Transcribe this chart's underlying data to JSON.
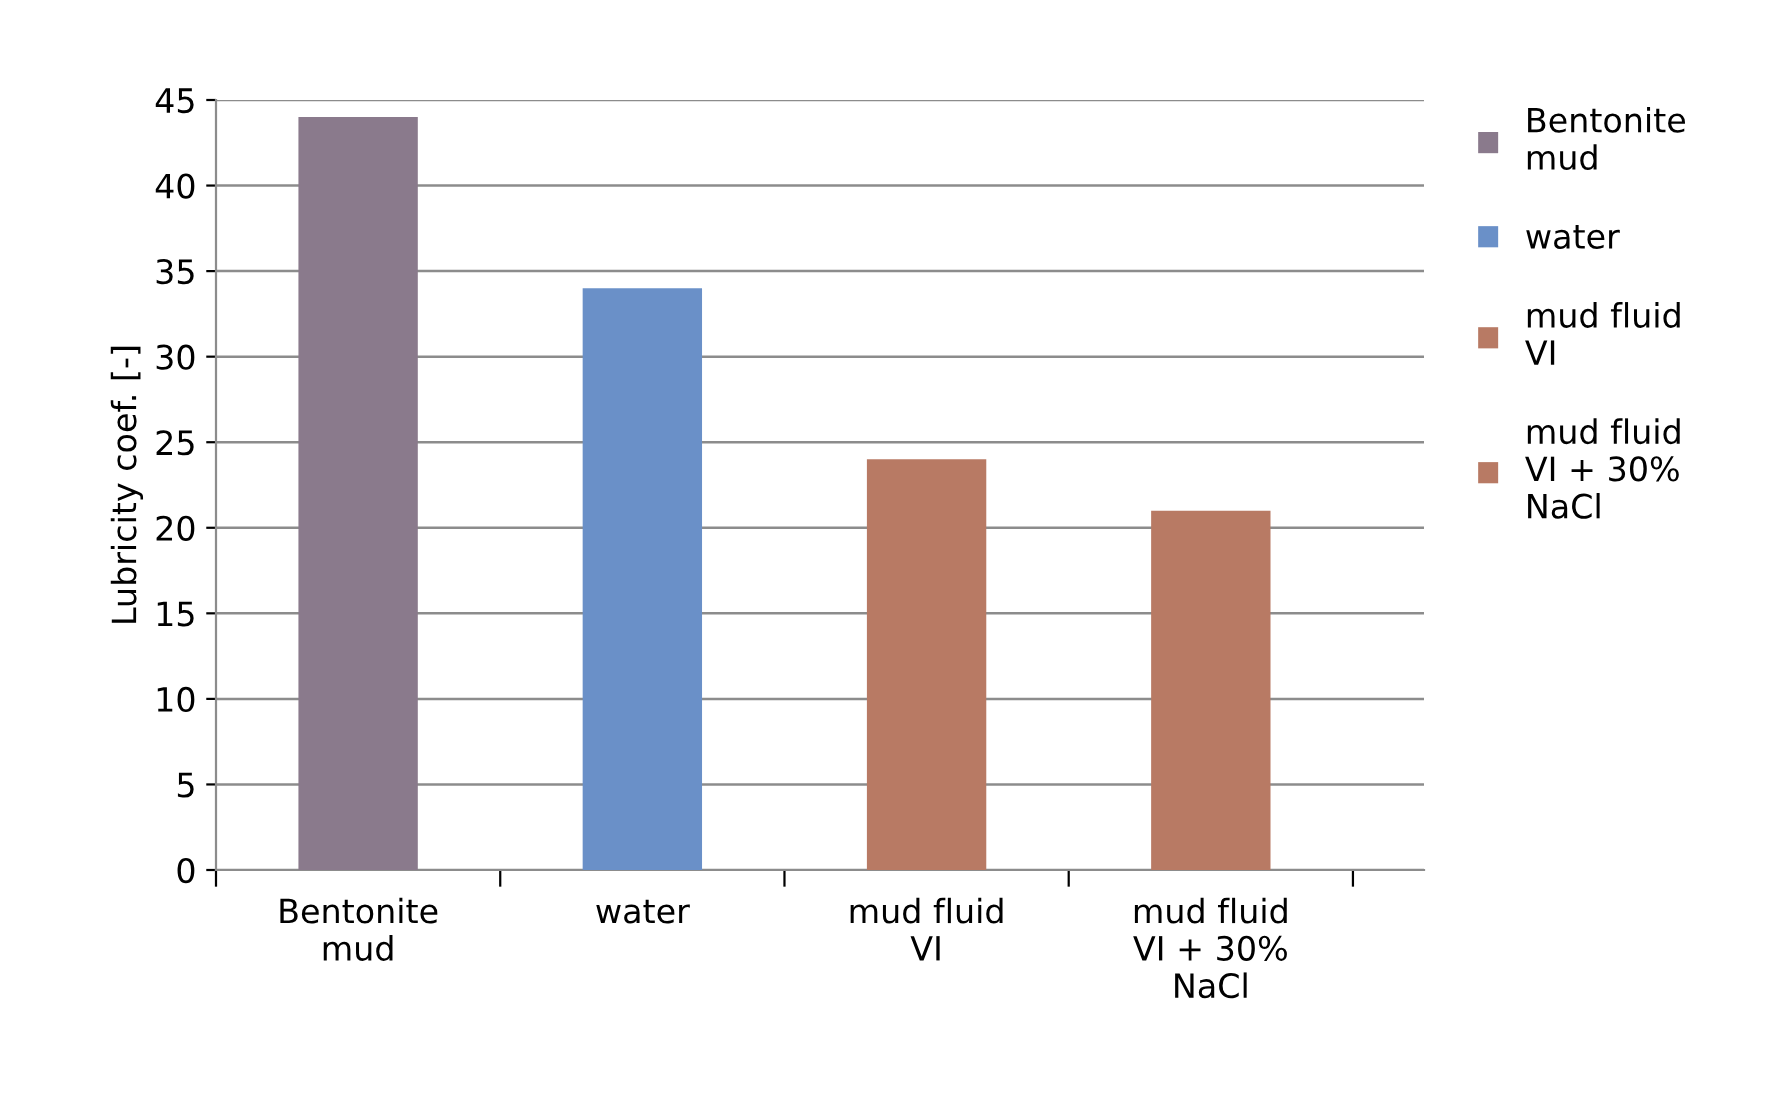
{
  "chart_data": {
    "type": "bar",
    "ylabel": "Lubricity coef. [-]",
    "categories": [
      "Bentonite mud",
      "water",
      "mud fluid VI",
      "mud fluid VI + 30% NaCl"
    ],
    "series": [
      {
        "name": "Bentonite mud",
        "color": "#8a7a8c",
        "values": [
          44,
          null,
          null,
          null
        ]
      },
      {
        "name": "water",
        "color": "#6a90c8",
        "values": [
          null,
          34,
          null,
          null
        ]
      },
      {
        "name": "mud fluid VI",
        "color": "#b87a64",
        "values": [
          null,
          null,
          24,
          null
        ]
      },
      {
        "name": "mud fluid VI + 30% NaCl",
        "color": "#b87a64",
        "values": [
          null,
          null,
          null,
          21
        ]
      }
    ],
    "ylim": [
      0,
      45
    ],
    "yticks": [
      0,
      5,
      10,
      15,
      20,
      25,
      30,
      35,
      40,
      45
    ],
    "grid": "y",
    "legend": "right"
  }
}
